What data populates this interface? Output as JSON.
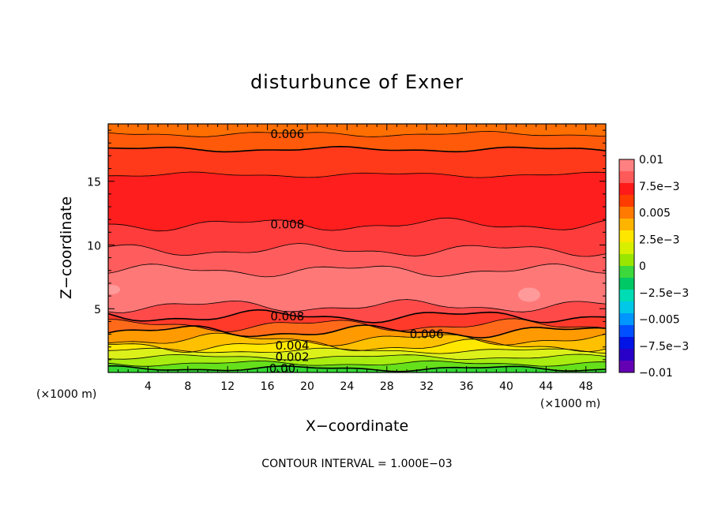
{
  "chart_data": {
    "type": "contour",
    "title": "disturbunce of Exner",
    "xlabel": "X−coordinate",
    "ylabel": "Z−coordinate",
    "x_unit": "(×1000 m)",
    "y_unit": "(×1000 m)",
    "xlim": [
      0,
      50
    ],
    "ylim": [
      0,
      19.5
    ],
    "x_ticks": [
      "4",
      "8",
      "12",
      "16",
      "20",
      "24",
      "28",
      "32",
      "36",
      "40",
      "44",
      "48"
    ],
    "y_ticks": [
      "5",
      "10",
      "15"
    ],
    "contour_interval_text": "CONTOUR INTERVAL = 1.000E−03",
    "contour_labels": [
      {
        "text": "0.006",
        "x": 18,
        "z": 18.7
      },
      {
        "text": "0.008",
        "x": 18,
        "z": 11.6
      },
      {
        "text": "0.008",
        "x": 18,
        "z": 4.4
      },
      {
        "text": "0.006",
        "x": 32,
        "z": 3.0
      },
      {
        "text": "0.004",
        "x": 18.5,
        "z": 2.1
      },
      {
        "text": "0.002",
        "x": 18.5,
        "z": 1.2
      },
      {
        "text": "0.00",
        "x": 17.5,
        "z": 0.3
      }
    ],
    "field_levels": [
      {
        "z_bottom": 0.0,
        "z_top": 0.3,
        "value": 0.0005,
        "color": "#33d633"
      },
      {
        "z_bottom": 0.3,
        "z_top": 0.7,
        "value": 0.0015,
        "color": "#66e01a"
      },
      {
        "z_bottom": 0.7,
        "z_top": 1.2,
        "value": 0.0022,
        "color": "#a8ec10"
      },
      {
        "z_bottom": 1.2,
        "z_top": 1.7,
        "value": 0.0032,
        "color": "#dcf01a"
      },
      {
        "z_bottom": 1.7,
        "z_top": 2.1,
        "value": 0.0042,
        "color": "#ffe800"
      },
      {
        "z_bottom": 2.1,
        "z_top": 2.6,
        "value": 0.0052,
        "color": "#ffc000"
      },
      {
        "z_bottom": 2.6,
        "z_top": 3.2,
        "value": 0.0062,
        "color": "#ff9a00"
      },
      {
        "z_bottom": 3.2,
        "z_top": 3.7,
        "value": 0.0068,
        "color": "#ff6a1a"
      },
      {
        "z_bottom": 3.7,
        "z_top": 4.4,
        "value": 0.0078,
        "color": "#ff3a2a"
      },
      {
        "z_bottom": 4.4,
        "z_top": 5.2,
        "value": 0.0085,
        "color": "#ff4a4a"
      },
      {
        "z_bottom": 5.2,
        "z_top": 8.0,
        "value": 0.0095,
        "color": "#ff7878"
      },
      {
        "z_bottom": 8.0,
        "z_top": 9.6,
        "value": 0.009,
        "color": "#ff5d5d"
      },
      {
        "z_bottom": 9.6,
        "z_top": 11.6,
        "value": 0.0085,
        "color": "#ff3c3c"
      },
      {
        "z_bottom": 11.6,
        "z_top": 15.5,
        "value": 0.0078,
        "color": "#ff1e1e"
      },
      {
        "z_bottom": 15.5,
        "z_top": 17.5,
        "value": 0.0072,
        "color": "#ff3a1a"
      },
      {
        "z_bottom": 17.5,
        "z_top": 18.7,
        "value": 0.0065,
        "color": "#ff5a0a"
      },
      {
        "z_bottom": 18.7,
        "z_top": 19.5,
        "value": 0.0058,
        "color": "#ff6e00"
      }
    ],
    "colorbar": {
      "tick_labels": [
        "0.01",
        "7.5e−3",
        "0.005",
        "2.5e−3",
        "0",
        "−2.5e−3",
        "−0.005",
        "−7.5e−3",
        "−0.01"
      ],
      "colors_top_to_bottom": [
        "#ff8080",
        "#ff5a5a",
        "#ff1a1a",
        "#ff3c00",
        "#ff7a00",
        "#ffb400",
        "#ffe600",
        "#d8f000",
        "#9ae600",
        "#3cd83c",
        "#00c864",
        "#00dcb4",
        "#00c8e6",
        "#0096ff",
        "#0050ff",
        "#0014e6",
        "#2800c8",
        "#6400b4"
      ]
    },
    "grid": false,
    "legend": "colorbar-right"
  }
}
